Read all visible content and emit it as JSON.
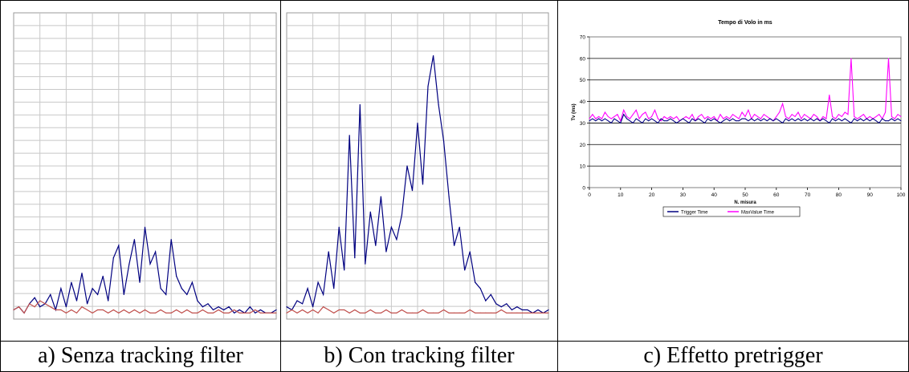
{
  "captions": [
    "a) Senza tracking filter",
    "b) Con tracking filter",
    "c) Effetto pretrigger"
  ],
  "chart_data": [
    {
      "type": "line",
      "title": "",
      "xlabel": "",
      "ylabel": "",
      "grid": true,
      "ylim": [
        0,
        1
      ],
      "x": [
        0,
        2,
        4,
        6,
        8,
        10,
        12,
        14,
        16,
        18,
        20,
        22,
        24,
        26,
        28,
        30,
        32,
        34,
        36,
        38,
        40,
        42,
        44,
        46,
        48,
        50,
        52,
        54,
        56,
        58,
        60,
        62,
        64,
        66,
        68,
        70,
        72,
        74,
        76,
        78,
        80,
        82,
        84,
        86,
        88,
        90,
        92,
        94,
        96,
        98,
        100
      ],
      "series": [
        {
          "values": [
            0.03,
            0.04,
            0.02,
            0.05,
            0.07,
            0.04,
            0.05,
            0.08,
            0.03,
            0.1,
            0.04,
            0.12,
            0.06,
            0.15,
            0.05,
            0.1,
            0.08,
            0.14,
            0.06,
            0.2,
            0.24,
            0.08,
            0.18,
            0.26,
            0.12,
            0.3,
            0.18,
            0.22,
            0.1,
            0.08,
            0.26,
            0.14,
            0.1,
            0.08,
            0.12,
            0.06,
            0.04,
            0.05,
            0.03,
            0.04,
            0.03,
            0.04,
            0.02,
            0.03,
            0.02,
            0.04,
            0.02,
            0.03,
            0.02,
            0.02,
            0.03
          ]
        },
        {
          "values": [
            0.03,
            0.04,
            0.02,
            0.05,
            0.04,
            0.06,
            0.05,
            0.04,
            0.03,
            0.03,
            0.02,
            0.03,
            0.02,
            0.04,
            0.03,
            0.02,
            0.03,
            0.03,
            0.02,
            0.03,
            0.02,
            0.03,
            0.02,
            0.03,
            0.02,
            0.03,
            0.02,
            0.02,
            0.03,
            0.02,
            0.02,
            0.03,
            0.02,
            0.03,
            0.02,
            0.02,
            0.03,
            0.02,
            0.02,
            0.03,
            0.02,
            0.02,
            0.03,
            0.02,
            0.02,
            0.02,
            0.03,
            0.02,
            0.02,
            0.02,
            0.02
          ]
        }
      ]
    },
    {
      "type": "line",
      "title": "",
      "xlabel": "",
      "ylabel": "",
      "grid": true,
      "ylim": [
        0,
        1
      ],
      "x": [
        0,
        2,
        4,
        6,
        8,
        10,
        12,
        14,
        16,
        18,
        20,
        22,
        24,
        26,
        28,
        30,
        32,
        34,
        36,
        38,
        40,
        42,
        44,
        46,
        48,
        50,
        52,
        54,
        56,
        58,
        60,
        62,
        64,
        66,
        68,
        70,
        72,
        74,
        76,
        78,
        80,
        82,
        84,
        86,
        88,
        90,
        92,
        94,
        96,
        98,
        100
      ],
      "series": [
        {
          "values": [
            0.04,
            0.03,
            0.06,
            0.05,
            0.1,
            0.04,
            0.12,
            0.08,
            0.22,
            0.1,
            0.3,
            0.16,
            0.6,
            0.2,
            0.7,
            0.18,
            0.35,
            0.24,
            0.4,
            0.22,
            0.3,
            0.26,
            0.34,
            0.5,
            0.42,
            0.64,
            0.44,
            0.76,
            0.86,
            0.7,
            0.58,
            0.4,
            0.24,
            0.3,
            0.16,
            0.22,
            0.12,
            0.1,
            0.06,
            0.08,
            0.05,
            0.04,
            0.05,
            0.03,
            0.04,
            0.03,
            0.03,
            0.02,
            0.03,
            0.02,
            0.03
          ]
        },
        {
          "values": [
            0.02,
            0.03,
            0.02,
            0.03,
            0.02,
            0.03,
            0.02,
            0.04,
            0.03,
            0.02,
            0.03,
            0.03,
            0.02,
            0.03,
            0.02,
            0.02,
            0.03,
            0.02,
            0.02,
            0.03,
            0.02,
            0.02,
            0.03,
            0.02,
            0.02,
            0.02,
            0.03,
            0.02,
            0.02,
            0.02,
            0.03,
            0.02,
            0.02,
            0.02,
            0.02,
            0.03,
            0.02,
            0.02,
            0.02,
            0.02,
            0.02,
            0.03,
            0.02,
            0.02,
            0.02,
            0.02,
            0.02,
            0.02,
            0.02,
            0.02,
            0.02
          ]
        }
      ]
    },
    {
      "type": "line",
      "title": "Tempo di Volo in ms",
      "xlabel": "N. misura",
      "ylabel": "Tv (ms)",
      "grid": true,
      "legend": "bottom-center",
      "xlim": [
        0,
        100
      ],
      "ylim": [
        0,
        70
      ],
      "x": [
        0,
        1,
        2,
        3,
        4,
        5,
        6,
        7,
        8,
        9,
        10,
        11,
        12,
        13,
        14,
        15,
        16,
        17,
        18,
        19,
        20,
        21,
        22,
        23,
        24,
        25,
        26,
        27,
        28,
        29,
        30,
        31,
        32,
        33,
        34,
        35,
        36,
        37,
        38,
        39,
        40,
        41,
        42,
        43,
        44,
        45,
        46,
        47,
        48,
        49,
        50,
        51,
        52,
        53,
        54,
        55,
        56,
        57,
        58,
        59,
        60,
        61,
        62,
        63,
        64,
        65,
        66,
        67,
        68,
        69,
        70,
        71,
        72,
        73,
        74,
        75,
        76,
        77,
        78,
        79,
        80,
        81,
        82,
        83,
        84,
        85,
        86,
        87,
        88,
        89,
        90,
        91,
        92,
        93,
        94,
        95,
        96,
        97,
        98,
        99,
        100
      ],
      "series": [
        {
          "name": "Trigger Time",
          "color": "#000080",
          "values": [
            31,
            32,
            31,
            32,
            31,
            32,
            31,
            30,
            32,
            31,
            30,
            34,
            32,
            31,
            30,
            32,
            31,
            30,
            32,
            31,
            32,
            31,
            30,
            32,
            31,
            31,
            32,
            31,
            30,
            31,
            32,
            31,
            30,
            32,
            31,
            32,
            31,
            30,
            32,
            31,
            32,
            31,
            30,
            31,
            32,
            31,
            32,
            31,
            31,
            32,
            32,
            31,
            32,
            31,
            32,
            31,
            32,
            31,
            32,
            31,
            32,
            31,
            30,
            32,
            31,
            32,
            31,
            32,
            31,
            32,
            31,
            32,
            31,
            32,
            31,
            32,
            31,
            30,
            32,
            31,
            32,
            31,
            32,
            31,
            30,
            32,
            31,
            32,
            31,
            32,
            31,
            32,
            31,
            30,
            32,
            31,
            31,
            32,
            31,
            32,
            31
          ]
        },
        {
          "name": "MaxValue Time",
          "color": "#FF00FF",
          "values": [
            32,
            34,
            32,
            33,
            32,
            35,
            33,
            32,
            33,
            34,
            31,
            36,
            33,
            32,
            34,
            36,
            32,
            34,
            35,
            32,
            33,
            36,
            32,
            31,
            33,
            32,
            33,
            32,
            33,
            31,
            32,
            33,
            32,
            34,
            31,
            33,
            34,
            32,
            33,
            32,
            33,
            31,
            34,
            32,
            33,
            32,
            34,
            33,
            32,
            35,
            33,
            36,
            32,
            34,
            33,
            32,
            34,
            33,
            32,
            31,
            33,
            35,
            39,
            33,
            32,
            34,
            33,
            35,
            32,
            34,
            33,
            32,
            34,
            33,
            31,
            33,
            32,
            43,
            33,
            32,
            34,
            33,
            35,
            34,
            60,
            33,
            32,
            33,
            34,
            32,
            33,
            32,
            33,
            34,
            32,
            35,
            60,
            33,
            32,
            34,
            33
          ]
        }
      ]
    }
  ]
}
